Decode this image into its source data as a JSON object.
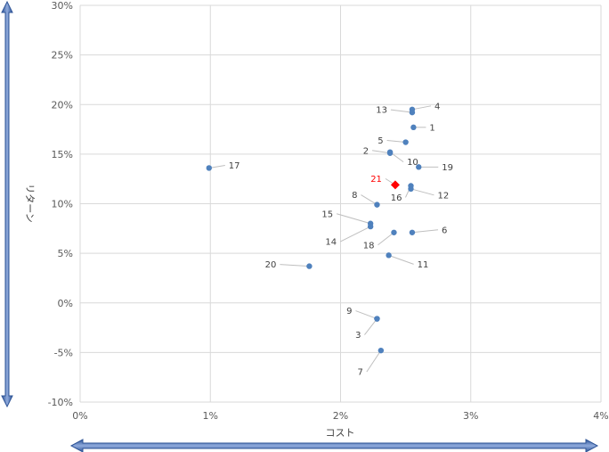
{
  "chart_data": {
    "type": "scatter",
    "xlabel": "コスト",
    "ylabel": "リターン",
    "xlim": [
      0,
      4
    ],
    "ylim": [
      -10,
      30
    ],
    "x_ticks": [
      "0%",
      "1%",
      "2%",
      "3%",
      "4%"
    ],
    "y_ticks": [
      "30%",
      "25%",
      "20%",
      "15%",
      "10%",
      "5%",
      "0%",
      "-5%",
      "-10%"
    ],
    "grid": true,
    "point_color": "#4f81bd",
    "highlight_color": "#ff0000",
    "points": [
      {
        "label": "1",
        "x": 2.56,
        "y": 17.7
      },
      {
        "label": "2",
        "x": 2.38,
        "y": 15.1
      },
      {
        "label": "3",
        "x": 2.28,
        "y": -1.6
      },
      {
        "label": "4",
        "x": 2.55,
        "y": 19.5
      },
      {
        "label": "5",
        "x": 2.5,
        "y": 16.2
      },
      {
        "label": "6",
        "x": 2.55,
        "y": 7.1
      },
      {
        "label": "7",
        "x": 2.31,
        "y": -4.8
      },
      {
        "label": "8",
        "x": 2.28,
        "y": 9.9
      },
      {
        "label": "9",
        "x": 2.28,
        "y": -1.6
      },
      {
        "label": "10",
        "x": 2.38,
        "y": 15.2
      },
      {
        "label": "11",
        "x": 2.37,
        "y": 4.8
      },
      {
        "label": "12",
        "x": 2.54,
        "y": 11.5
      },
      {
        "label": "13",
        "x": 2.55,
        "y": 19.2
      },
      {
        "label": "14",
        "x": 2.23,
        "y": 7.7
      },
      {
        "label": "15",
        "x": 2.23,
        "y": 8.0
      },
      {
        "label": "16",
        "x": 2.54,
        "y": 11.8
      },
      {
        "label": "17",
        "x": 0.99,
        "y": 13.6
      },
      {
        "label": "18",
        "x": 2.41,
        "y": 7.1
      },
      {
        "label": "19",
        "x": 2.6,
        "y": 13.7
      },
      {
        "label": "20",
        "x": 1.76,
        "y": 3.7
      },
      {
        "label": "21",
        "x": 2.42,
        "y": 11.9,
        "highlight": true
      }
    ]
  }
}
